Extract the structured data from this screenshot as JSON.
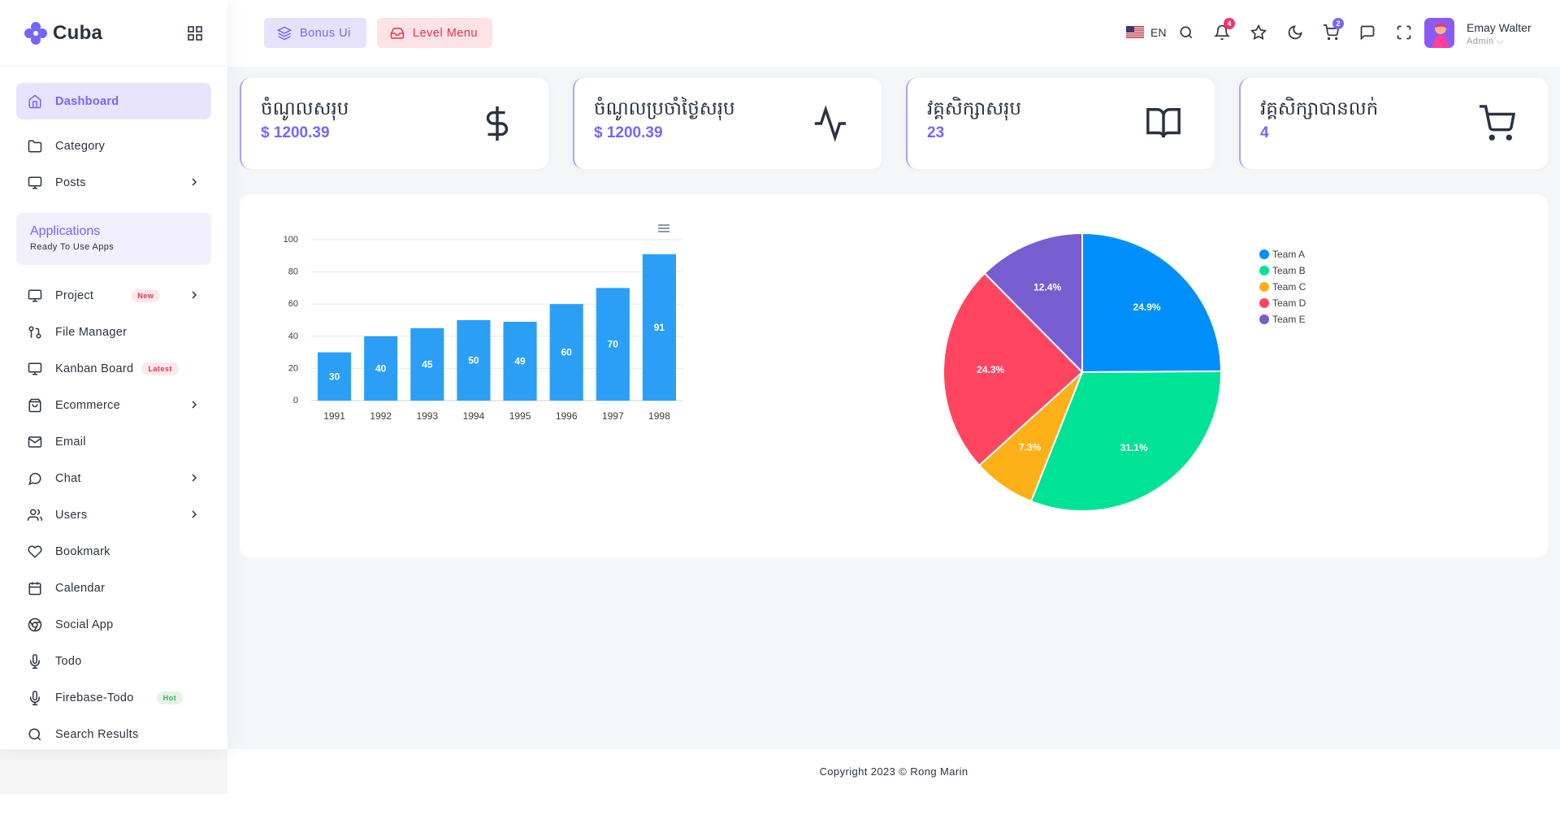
{
  "brand": {
    "name": "Cuba"
  },
  "sidebar": {
    "items": [
      {
        "label": "Dashboard",
        "icon": "home-icon",
        "active": true
      },
      {
        "label": "Category",
        "icon": "folder-icon"
      },
      {
        "label": "Posts",
        "icon": "monitor-icon",
        "has_submenu": true
      }
    ],
    "apps_section": {
      "title": "Applications",
      "subtitle": "Ready To Use Apps"
    },
    "app_items": [
      {
        "label": "Project",
        "icon": "monitor-icon",
        "badge": "New",
        "has_submenu": true
      },
      {
        "label": "File Manager",
        "icon": "git-pull-icon"
      },
      {
        "label": "Kanban Board",
        "icon": "monitor-icon",
        "badge": "Latest"
      },
      {
        "label": "Ecommerce",
        "icon": "shopping-bag-icon",
        "has_submenu": true
      },
      {
        "label": "Email",
        "icon": "mail-icon"
      },
      {
        "label": "Chat",
        "icon": "message-circle-icon",
        "has_submenu": true
      },
      {
        "label": "Users",
        "icon": "users-icon",
        "has_submenu": true
      },
      {
        "label": "Bookmark",
        "icon": "heart-icon"
      },
      {
        "label": "Calendar",
        "icon": "calendar-icon"
      },
      {
        "label": "Social App",
        "icon": "chrome-icon"
      },
      {
        "label": "Todo",
        "icon": "mic-icon"
      },
      {
        "label": "Firebase-Todo",
        "icon": "mic-icon",
        "badge": "Hot"
      },
      {
        "label": "Search Results",
        "icon": "search-icon"
      }
    ]
  },
  "header": {
    "bonus_label": "Bonus Ui",
    "level_label": "Level Menu",
    "language": "EN",
    "notification_count": "4",
    "cart_count": "2",
    "user_name": "Emay Walter",
    "user_role": "Admin"
  },
  "stats": [
    {
      "title": "ចំណូលសរុប",
      "value": "$ 1200.39",
      "icon": "dollar-icon"
    },
    {
      "title": "ចំណូលប្រចាំថ្ងៃសរុប",
      "value": "$ 1200.39",
      "icon": "activity-icon"
    },
    {
      "title": "វគ្គសិក្សាសរុប",
      "value": "23",
      "icon": "book-open-icon"
    },
    {
      "title": "វគ្គសិក្សាបានលក់",
      "value": "4",
      "icon": "shopping-cart-icon"
    }
  ],
  "chart_data": [
    {
      "type": "bar",
      "categories": [
        "1991",
        "1992",
        "1993",
        "1994",
        "1995",
        "1996",
        "1997",
        "1998"
      ],
      "values": [
        30,
        40,
        45,
        50,
        49,
        60,
        70,
        91
      ],
      "ylim": [
        0,
        100
      ],
      "yticks": [
        "0",
        "20",
        "40",
        "60",
        "80",
        "100"
      ],
      "color": "#2b9ff5",
      "grid": true
    },
    {
      "type": "pie",
      "categories": [
        "Team A",
        "Team B",
        "Team C",
        "Team D",
        "Team E"
      ],
      "values": [
        24.9,
        31.1,
        7.3,
        24.3,
        12.4
      ],
      "labels": [
        "24.9%",
        "31.1%",
        "7.3%",
        "24.3%",
        "12.4%"
      ],
      "colors": [
        "#008ffb",
        "#00e396",
        "#feb019",
        "#ff4560",
        "#775dd0"
      ],
      "legend_position": "right"
    }
  ],
  "footer": {
    "text": "Copyright 2023 © Rong Marin"
  }
}
